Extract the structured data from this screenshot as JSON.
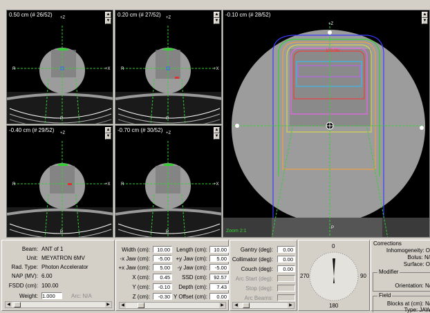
{
  "views": {
    "v1": {
      "label": "0.50 cm (# 26/52)"
    },
    "v2": {
      "label": "0.20 cm (# 27/52)"
    },
    "v3": {
      "label": "-0.40 cm (# 29/52)"
    },
    "v4": {
      "label": "-0.70 cm (# 30/52)"
    },
    "main": {
      "label": "-0.10 cm (# 28/52)",
      "zoom": "Zoom 2:1",
      "dose_label": "100.0%"
    },
    "orient": {
      "top": "+Z",
      "left": "R",
      "right": "+X",
      "bottom": "P"
    },
    "scroll_up": "▲",
    "scroll_down": "▼"
  },
  "beam_panel": {
    "beam_label": "Beam:",
    "beam": "ANT of 1",
    "unit_label": "Unit:",
    "unit": "MEYATRON 6MV",
    "rad_label": "Rad. Type:",
    "rad": "Photon Accelerator",
    "nap_label": "NAP (MV):",
    "nap": "6.00",
    "fsdd_label": "FSDD (cm):",
    "fsdd": "100.00",
    "weight_label": "Weight:",
    "weight": "1.000",
    "arc_label": "Arc: N/A"
  },
  "geom_panel": {
    "width_label": "Width (cm):",
    "width": "10.00",
    "length_label": "Length (cm):",
    "length": "10.00",
    "xjaw_neg_label": "-x Jaw (cm):",
    "xjaw_neg": "-5.00",
    "yjaw_pos_label": "+y Jaw (cm):",
    "yjaw_pos": "5.00",
    "xjaw_pos_label": "+x Jaw (cm):",
    "xjaw_pos": "5.00",
    "yjaw_neg_label": "-y Jaw (cm):",
    "yjaw_neg": "-5.00",
    "x_label": "X (cm):",
    "x": "0.45",
    "ssd_label": "SSD (cm):",
    "ssd": "92.57",
    "y_label": "Y (cm):",
    "y": "-0.10",
    "depth_label": "Depth (cm):",
    "depth": "7.43",
    "z_label": "Z (cm):",
    "z": "-0.30",
    "yoff_label": "Y Offset (cm):",
    "yoff": "0.00"
  },
  "angle_panel": {
    "gantry_label": "Gantry (deg):",
    "gantry": "0.00",
    "collimator_label": "Collimator (deg):",
    "collimator": "0.00",
    "couch_label": "Couch (deg):",
    "couch": "0.00",
    "arcstart_label": "Arc Start (deg):",
    "stop_label": "Stop (deg):",
    "arcbeams_label": "Arc Beams:"
  },
  "dial": {
    "top": "0",
    "left": "270",
    "right": "90",
    "bottom": "180",
    "angle_deg": 0
  },
  "corrections": {
    "title": "Corrections",
    "inhom": "Inhomogeneity: O",
    "bolus": "Bolus: N/",
    "surface": "Surface: O",
    "modifier": "Modifier",
    "orientation": "Orientation: N/",
    "field": "Field",
    "blocks": "Blocks at (cm): N/",
    "type": "Type: JAW"
  }
}
